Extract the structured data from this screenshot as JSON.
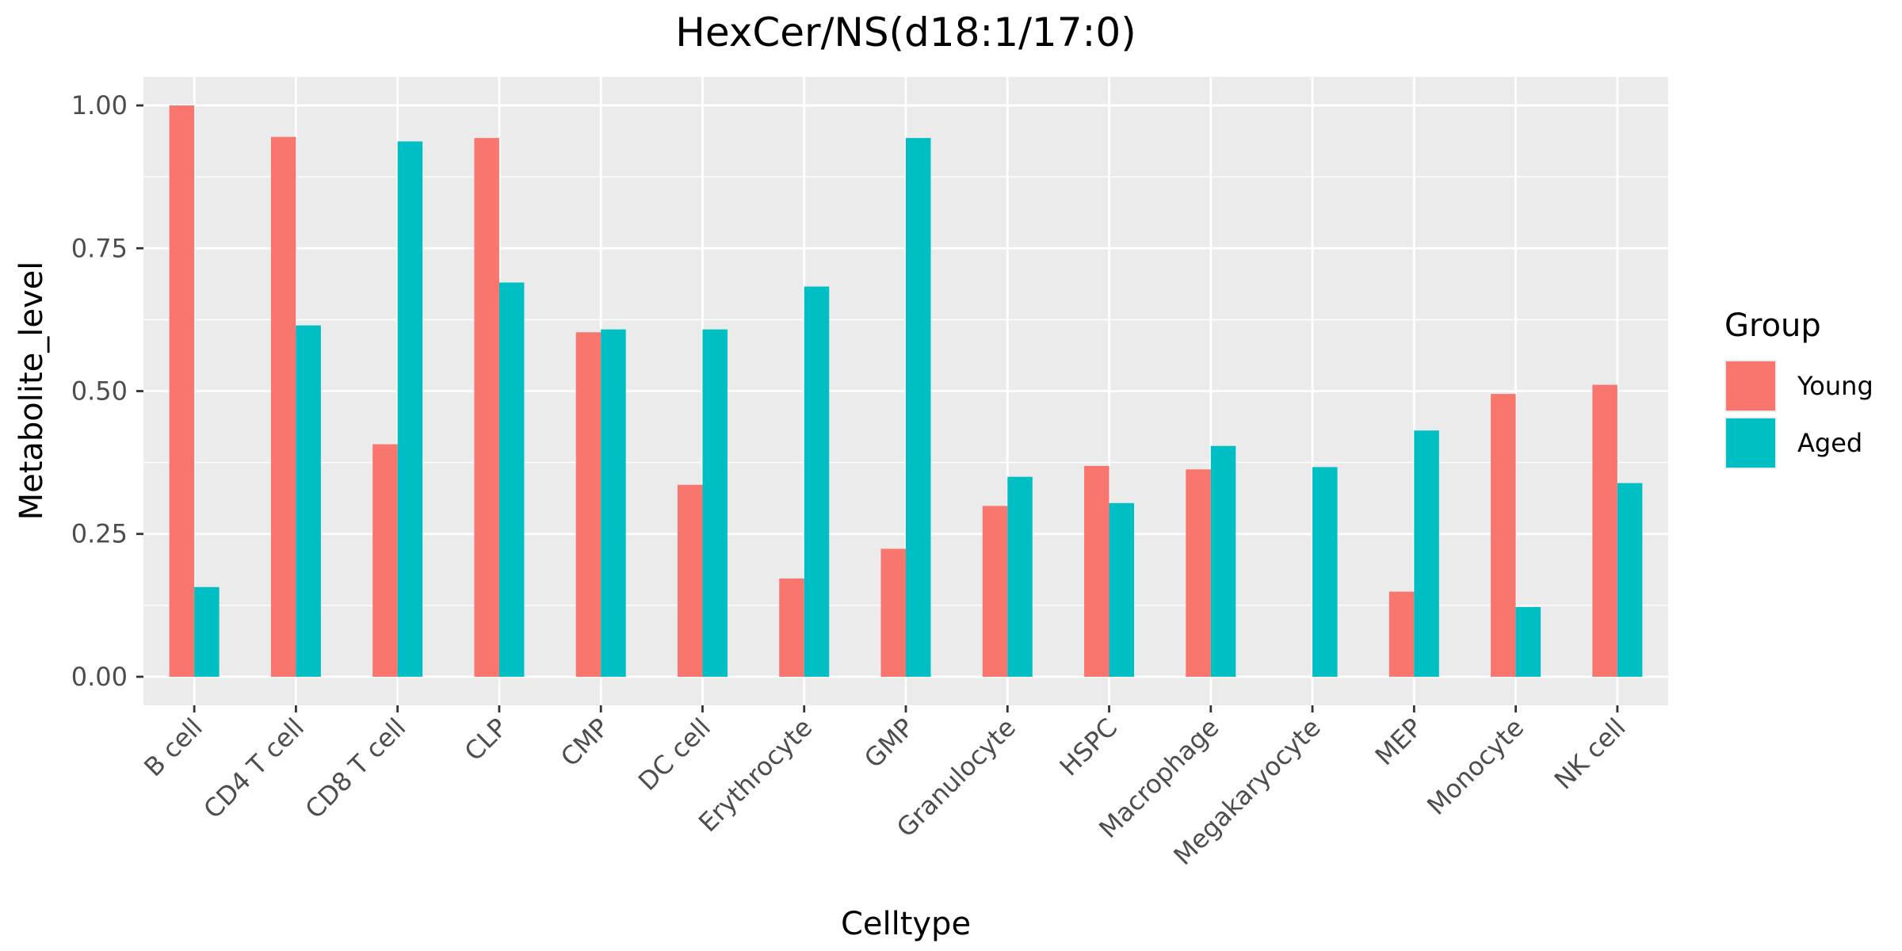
{
  "chart_data": {
    "type": "bar",
    "title": "HexCer/NS(d18:1/17:0)",
    "xlabel": "Celltype",
    "ylabel": "Metabolite_level",
    "ylim": [
      -0.05,
      1.05
    ],
    "yticks": [
      0.0,
      0.25,
      0.5,
      0.75,
      1.0
    ],
    "ytick_labels": [
      "0.00",
      "0.25",
      "0.50",
      "0.75",
      "1.00"
    ],
    "grid": true,
    "legend": {
      "title": "Group",
      "position": "right"
    },
    "categories": [
      "B cell",
      "CD4 T cell",
      "CD8 T cell",
      "CLP",
      "CMP",
      "DC cell",
      "Erythrocyte",
      "GMP",
      "Granulocyte",
      "HSPC",
      "Macrophage",
      "Megakaryocyte",
      "MEP",
      "Monocyte",
      "NK cell"
    ],
    "series": [
      {
        "name": "Young",
        "color": "#F8766D",
        "values": [
          1.0,
          0.945,
          0.407,
          0.943,
          0.603,
          0.336,
          0.172,
          0.224,
          0.299,
          0.369,
          0.363,
          0.0,
          0.149,
          0.495,
          0.511
        ]
      },
      {
        "name": "Aged",
        "color": "#00BFC4",
        "values": [
          0.157,
          0.615,
          0.937,
          0.69,
          0.608,
          0.608,
          0.683,
          0.943,
          0.35,
          0.304,
          0.404,
          0.367,
          0.431,
          0.122,
          0.339
        ]
      }
    ]
  }
}
